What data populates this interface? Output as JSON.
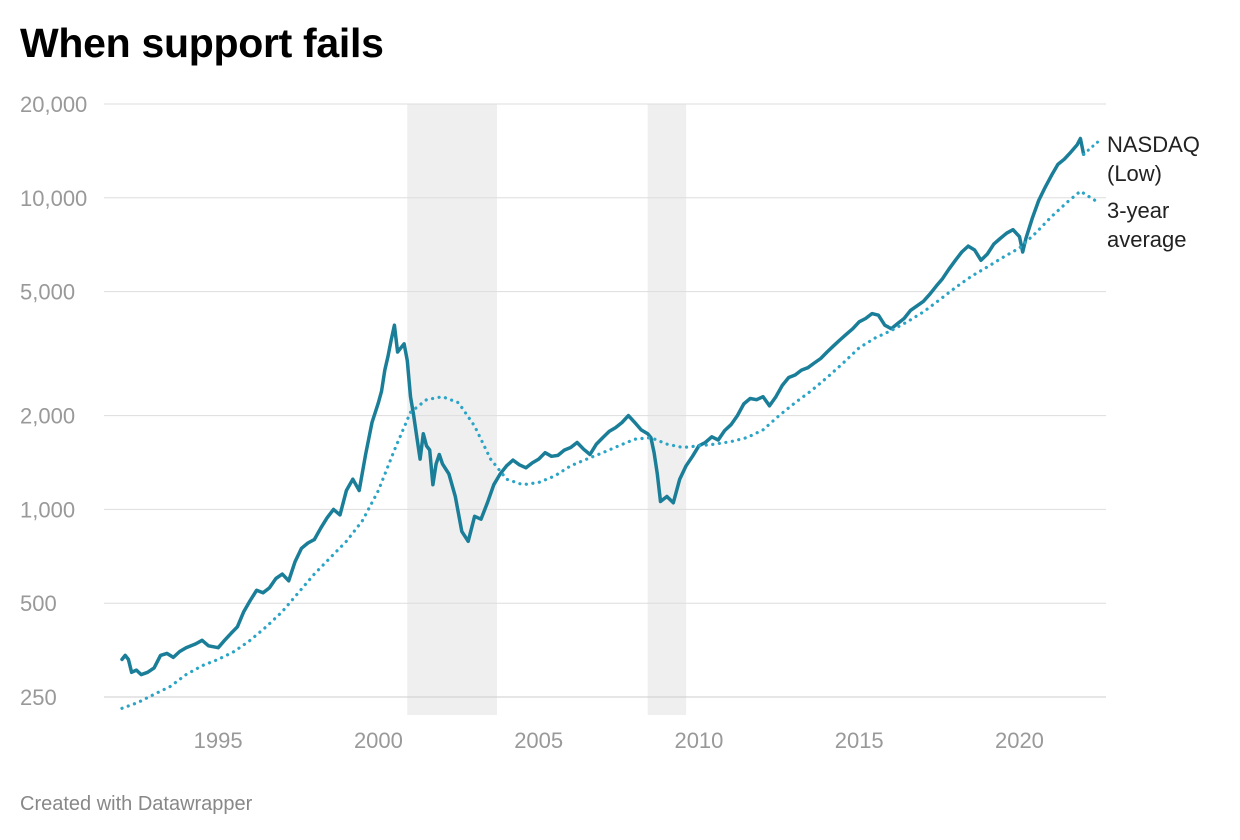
{
  "title": "When support fails",
  "footer": "Created with Datawrapper",
  "colors": {
    "nasdaq": "#1b7e98",
    "average": "#2ba4c6",
    "recession": "#efefef",
    "grid": "#dddddd"
  },
  "chart_data": {
    "type": "line",
    "title": "When support fails",
    "y_scale": "log",
    "ylim": [
      230,
      20000
    ],
    "xlim": [
      1992.0,
      2022.7
    ],
    "y_ticks": [
      {
        "value": 20000,
        "label": "20,000"
      },
      {
        "value": 10000,
        "label": "10,000"
      },
      {
        "value": 5000,
        "label": "5,000"
      },
      {
        "value": 2000,
        "label": "2,000"
      },
      {
        "value": 1000,
        "label": "1,000"
      },
      {
        "value": 500,
        "label": "500"
      },
      {
        "value": 250,
        "label": "250"
      }
    ],
    "x_ticks": [
      {
        "value": 1995,
        "label": "1995"
      },
      {
        "value": 2000,
        "label": "2000"
      },
      {
        "value": 2005,
        "label": "2005"
      },
      {
        "value": 2010,
        "label": "2010"
      },
      {
        "value": 2015,
        "label": "2015"
      },
      {
        "value": 2020,
        "label": "2020"
      }
    ],
    "recessions": [
      [
        2000.9,
        2003.7
      ],
      [
        2008.4,
        2009.6
      ]
    ],
    "series": [
      {
        "name": "NASDAQ (Low)",
        "style": "solid",
        "points": [
          [
            1992.0,
            330
          ],
          [
            1992.1,
            340
          ],
          [
            1992.2,
            330
          ],
          [
            1992.3,
            300
          ],
          [
            1992.45,
            305
          ],
          [
            1992.6,
            295
          ],
          [
            1992.8,
            300
          ],
          [
            1993.0,
            310
          ],
          [
            1993.2,
            340
          ],
          [
            1993.4,
            345
          ],
          [
            1993.6,
            335
          ],
          [
            1993.8,
            350
          ],
          [
            1994.0,
            360
          ],
          [
            1994.3,
            370
          ],
          [
            1994.5,
            380
          ],
          [
            1994.7,
            365
          ],
          [
            1995.0,
            360
          ],
          [
            1995.2,
            380
          ],
          [
            1995.4,
            400
          ],
          [
            1995.6,
            420
          ],
          [
            1995.8,
            470
          ],
          [
            1996.0,
            510
          ],
          [
            1996.2,
            550
          ],
          [
            1996.4,
            540
          ],
          [
            1996.6,
            560
          ],
          [
            1996.8,
            600
          ],
          [
            1997.0,
            620
          ],
          [
            1997.2,
            590
          ],
          [
            1997.4,
            680
          ],
          [
            1997.6,
            750
          ],
          [
            1997.8,
            780
          ],
          [
            1998.0,
            800
          ],
          [
            1998.2,
            870
          ],
          [
            1998.4,
            940
          ],
          [
            1998.6,
            1000
          ],
          [
            1998.8,
            960
          ],
          [
            1999.0,
            1150
          ],
          [
            1999.2,
            1250
          ],
          [
            1999.4,
            1150
          ],
          [
            1999.6,
            1500
          ],
          [
            1999.8,
            1900
          ],
          [
            2000.0,
            2200
          ],
          [
            2000.1,
            2400
          ],
          [
            2000.2,
            2800
          ],
          [
            2000.3,
            3100
          ],
          [
            2000.4,
            3500
          ],
          [
            2000.5,
            3900
          ],
          [
            2000.6,
            3200
          ],
          [
            2000.7,
            3300
          ],
          [
            2000.8,
            3400
          ],
          [
            2000.9,
            3000
          ],
          [
            2001.0,
            2300
          ],
          [
            2001.1,
            2000
          ],
          [
            2001.2,
            1700
          ],
          [
            2001.3,
            1450
          ],
          [
            2001.4,
            1750
          ],
          [
            2001.5,
            1600
          ],
          [
            2001.6,
            1550
          ],
          [
            2001.7,
            1200
          ],
          [
            2001.8,
            1400
          ],
          [
            2001.9,
            1500
          ],
          [
            2002.0,
            1400
          ],
          [
            2002.2,
            1300
          ],
          [
            2002.4,
            1100
          ],
          [
            2002.6,
            850
          ],
          [
            2002.8,
            790
          ],
          [
            2003.0,
            950
          ],
          [
            2003.2,
            930
          ],
          [
            2003.4,
            1050
          ],
          [
            2003.6,
            1200
          ],
          [
            2003.8,
            1300
          ],
          [
            2004.0,
            1380
          ],
          [
            2004.2,
            1440
          ],
          [
            2004.4,
            1390
          ],
          [
            2004.6,
            1360
          ],
          [
            2004.8,
            1410
          ],
          [
            2005.0,
            1450
          ],
          [
            2005.2,
            1520
          ],
          [
            2005.4,
            1480
          ],
          [
            2005.6,
            1490
          ],
          [
            2005.8,
            1550
          ],
          [
            2006.0,
            1580
          ],
          [
            2006.2,
            1640
          ],
          [
            2006.4,
            1560
          ],
          [
            2006.6,
            1500
          ],
          [
            2006.8,
            1620
          ],
          [
            2007.0,
            1700
          ],
          [
            2007.2,
            1780
          ],
          [
            2007.4,
            1830
          ],
          [
            2007.6,
            1900
          ],
          [
            2007.8,
            2000
          ],
          [
            2008.0,
            1900
          ],
          [
            2008.2,
            1800
          ],
          [
            2008.4,
            1750
          ],
          [
            2008.5,
            1700
          ],
          [
            2008.6,
            1520
          ],
          [
            2008.7,
            1300
          ],
          [
            2008.8,
            1060
          ],
          [
            2009.0,
            1100
          ],
          [
            2009.2,
            1050
          ],
          [
            2009.4,
            1250
          ],
          [
            2009.6,
            1380
          ],
          [
            2009.8,
            1480
          ],
          [
            2010.0,
            1600
          ],
          [
            2010.2,
            1640
          ],
          [
            2010.4,
            1710
          ],
          [
            2010.6,
            1670
          ],
          [
            2010.8,
            1790
          ],
          [
            2011.0,
            1870
          ],
          [
            2011.2,
            2000
          ],
          [
            2011.4,
            2180
          ],
          [
            2011.6,
            2270
          ],
          [
            2011.8,
            2250
          ],
          [
            2012.0,
            2300
          ],
          [
            2012.2,
            2150
          ],
          [
            2012.4,
            2300
          ],
          [
            2012.6,
            2500
          ],
          [
            2012.8,
            2650
          ],
          [
            2013.0,
            2700
          ],
          [
            2013.2,
            2800
          ],
          [
            2013.4,
            2850
          ],
          [
            2013.6,
            2950
          ],
          [
            2013.8,
            3050
          ],
          [
            2014.0,
            3200
          ],
          [
            2014.2,
            3350
          ],
          [
            2014.4,
            3500
          ],
          [
            2014.6,
            3650
          ],
          [
            2014.8,
            3800
          ],
          [
            2015.0,
            4000
          ],
          [
            2015.2,
            4100
          ],
          [
            2015.4,
            4250
          ],
          [
            2015.6,
            4200
          ],
          [
            2015.8,
            3900
          ],
          [
            2016.0,
            3800
          ],
          [
            2016.2,
            3950
          ],
          [
            2016.4,
            4100
          ],
          [
            2016.6,
            4350
          ],
          [
            2016.8,
            4500
          ],
          [
            2017.0,
            4650
          ],
          [
            2017.2,
            4900
          ],
          [
            2017.4,
            5200
          ],
          [
            2017.6,
            5500
          ],
          [
            2017.8,
            5900
          ],
          [
            2018.0,
            6300
          ],
          [
            2018.2,
            6700
          ],
          [
            2018.4,
            7000
          ],
          [
            2018.6,
            6800
          ],
          [
            2018.8,
            6300
          ],
          [
            2019.0,
            6600
          ],
          [
            2019.2,
            7100
          ],
          [
            2019.4,
            7400
          ],
          [
            2019.6,
            7700
          ],
          [
            2019.8,
            7900
          ],
          [
            2020.0,
            7500
          ],
          [
            2020.1,
            6700
          ],
          [
            2020.2,
            7400
          ],
          [
            2020.4,
            8600
          ],
          [
            2020.6,
            9800
          ],
          [
            2020.8,
            10800
          ],
          [
            2021.0,
            11800
          ],
          [
            2021.2,
            12800
          ],
          [
            2021.4,
            13300
          ],
          [
            2021.6,
            14000
          ],
          [
            2021.8,
            14800
          ],
          [
            2021.9,
            15500
          ],
          [
            2022.0,
            13800
          ]
        ]
      },
      {
        "name": "3-year average",
        "style": "dotted",
        "points": [
          [
            1992.0,
            230
          ],
          [
            1992.5,
            240
          ],
          [
            1993.0,
            255
          ],
          [
            1993.5,
            270
          ],
          [
            1994.0,
            295
          ],
          [
            1994.5,
            315
          ],
          [
            1995.0,
            330
          ],
          [
            1995.5,
            350
          ],
          [
            1996.0,
            380
          ],
          [
            1996.5,
            420
          ],
          [
            1997.0,
            470
          ],
          [
            1997.5,
            540
          ],
          [
            1998.0,
            620
          ],
          [
            1998.5,
            700
          ],
          [
            1999.0,
            790
          ],
          [
            1999.5,
            920
          ],
          [
            2000.0,
            1150
          ],
          [
            2000.5,
            1550
          ],
          [
            2001.0,
            2050
          ],
          [
            2001.5,
            2250
          ],
          [
            2002.0,
            2300
          ],
          [
            2002.5,
            2200
          ],
          [
            2003.0,
            1850
          ],
          [
            2003.5,
            1450
          ],
          [
            2004.0,
            1250
          ],
          [
            2004.5,
            1200
          ],
          [
            2005.0,
            1220
          ],
          [
            2005.5,
            1280
          ],
          [
            2006.0,
            1380
          ],
          [
            2006.5,
            1450
          ],
          [
            2007.0,
            1520
          ],
          [
            2007.5,
            1600
          ],
          [
            2008.0,
            1680
          ],
          [
            2008.5,
            1700
          ],
          [
            2009.0,
            1620
          ],
          [
            2009.5,
            1580
          ],
          [
            2010.0,
            1600
          ],
          [
            2010.5,
            1620
          ],
          [
            2011.0,
            1650
          ],
          [
            2011.5,
            1700
          ],
          [
            2012.0,
            1800
          ],
          [
            2012.5,
            2000
          ],
          [
            2013.0,
            2200
          ],
          [
            2013.5,
            2400
          ],
          [
            2014.0,
            2650
          ],
          [
            2014.5,
            2950
          ],
          [
            2015.0,
            3300
          ],
          [
            2015.5,
            3550
          ],
          [
            2016.0,
            3750
          ],
          [
            2016.5,
            4000
          ],
          [
            2017.0,
            4300
          ],
          [
            2017.5,
            4700
          ],
          [
            2018.0,
            5150
          ],
          [
            2018.5,
            5600
          ],
          [
            2019.0,
            6000
          ],
          [
            2019.5,
            6450
          ],
          [
            2020.0,
            6900
          ],
          [
            2020.5,
            7700
          ],
          [
            2021.0,
            8700
          ],
          [
            2021.5,
            9700
          ],
          [
            2021.9,
            10500
          ],
          [
            2022.5,
            9600
          ]
        ]
      }
    ],
    "series_labels": [
      {
        "lines": [
          "NASDAQ",
          "(Low)"
        ]
      },
      {
        "lines": [
          "3-year",
          "average"
        ]
      }
    ]
  }
}
